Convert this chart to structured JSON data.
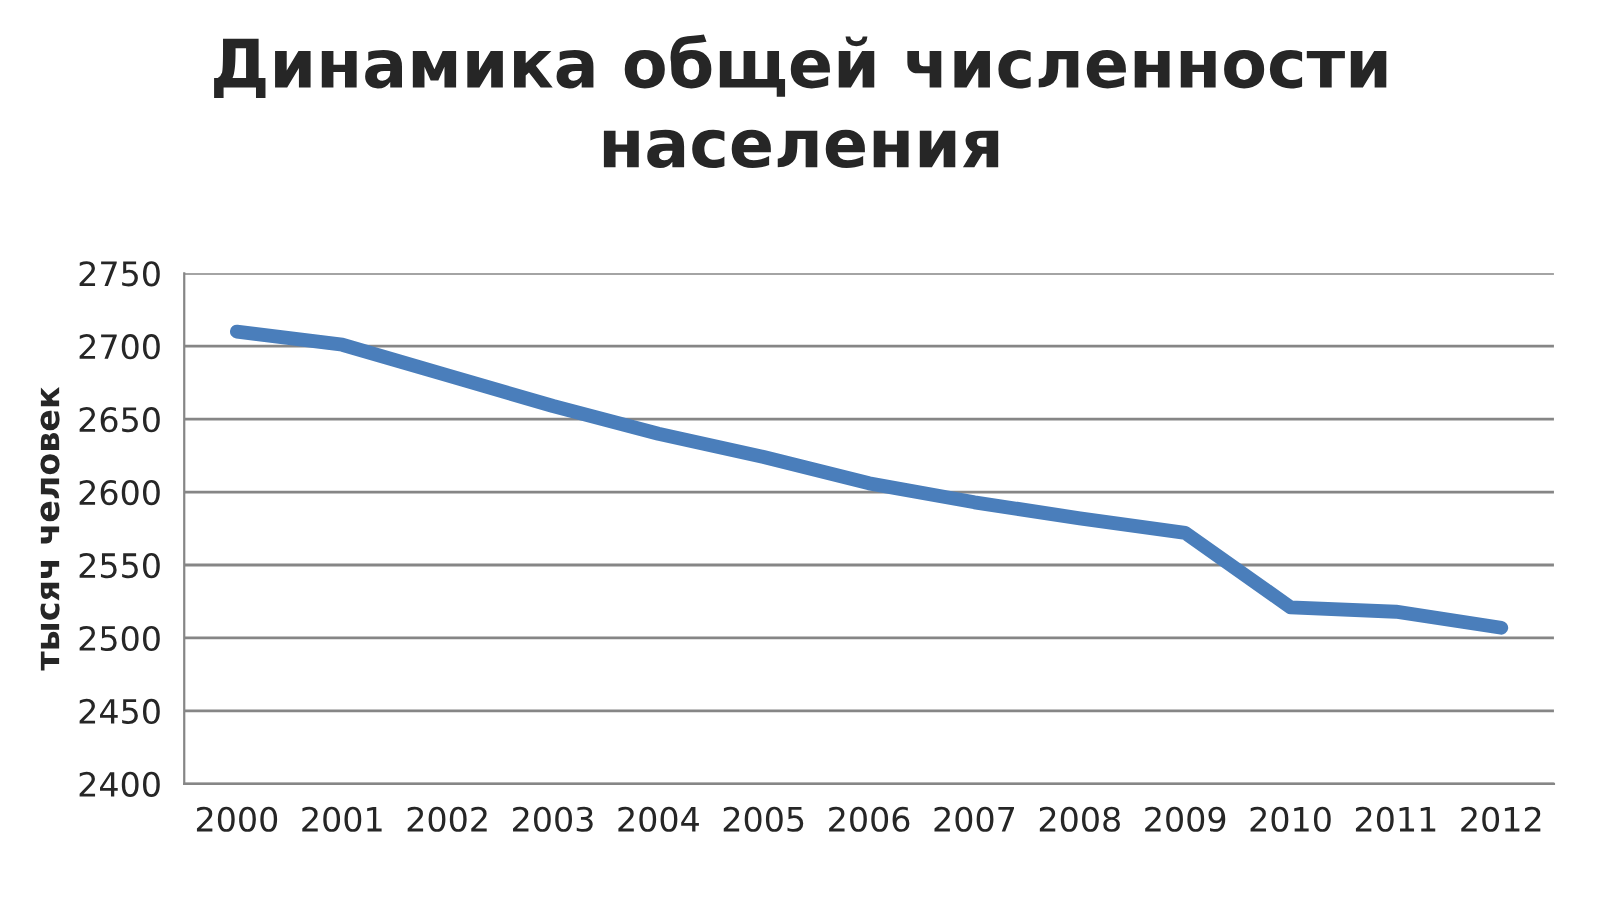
{
  "chart_data": {
    "type": "line",
    "title": "Динамика общей численности\nнаселения",
    "ylabel": "тысяч человек",
    "categories": [
      "2000",
      "2001",
      "2002",
      "2003",
      "2004",
      "2005",
      "2006",
      "2007",
      "2008",
      "2009",
      "2010",
      "2011",
      "2012"
    ],
    "series": [
      {
        "color": "#4a7ebb",
        "values": [
          2710,
          2701,
          2680,
          2659,
          2640,
          2624,
          2606,
          2593,
          2582,
          2572,
          2521,
          2518,
          2507
        ]
      }
    ],
    "ylim": [
      2400,
      2750
    ],
    "yticks": [
      2400,
      2450,
      2500,
      2550,
      2600,
      2650,
      2700,
      2750
    ],
    "grid": "y",
    "marker": "none",
    "line_style": "solid"
  }
}
